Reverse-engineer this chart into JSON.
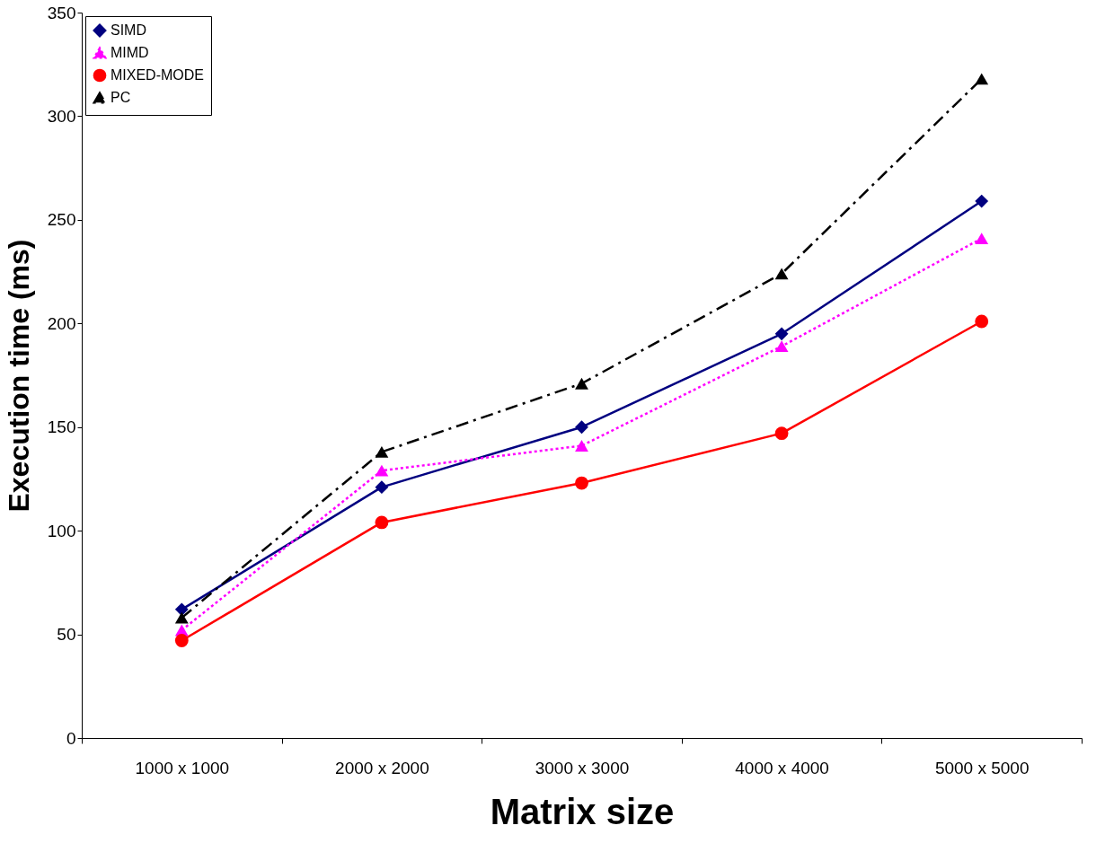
{
  "chart_data": {
    "type": "line",
    "xlabel": "Matrix size",
    "ylabel": "Execution time (ms)",
    "categories": [
      "1000 x 1000",
      "2000 x 2000",
      "3000 x 3000",
      "4000 x 4000",
      "5000 x 5000"
    ],
    "ylim": [
      0,
      350
    ],
    "yticks": [
      0,
      50,
      100,
      150,
      200,
      250,
      300,
      350
    ],
    "grid": false,
    "legend": "top left",
    "series": [
      {
        "name": "SIMD",
        "color": "#000080",
        "marker": "diamond",
        "line_style": "solid",
        "values": [
          62,
          121,
          150,
          195,
          259
        ]
      },
      {
        "name": "MIMD",
        "color": "#ff00ff",
        "marker": "triangle",
        "line_style": "dotted",
        "values": [
          52,
          129,
          141,
          189,
          241
        ]
      },
      {
        "name": "MIXED-MODE",
        "color": "#ff0000",
        "marker": "circle",
        "line_style": "solid",
        "values": [
          47,
          104,
          123,
          147,
          201
        ]
      },
      {
        "name": "PC",
        "color": "#000000",
        "marker": "triangle",
        "line_style": "dashdot",
        "values": [
          58,
          138,
          171,
          224,
          318
        ]
      }
    ]
  }
}
